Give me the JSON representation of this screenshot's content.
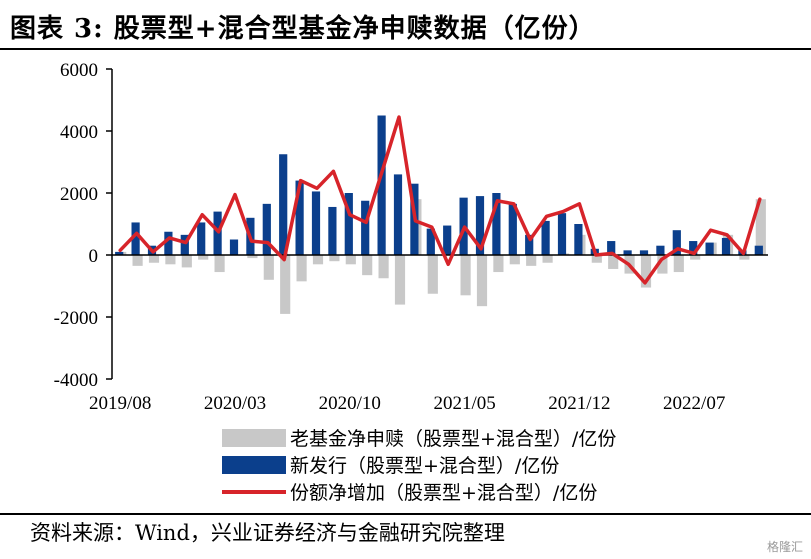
{
  "title": "图表 3:  股票型+混合型基金净申赎数据（亿份）",
  "source": "资料来源：Wind，兴业证券经济与金融研究院整理",
  "watermark": "格隆汇",
  "colors": {
    "old": "#c8c8c8",
    "new": "#0b3f8c",
    "net": "#d7242a"
  },
  "chart_data": {
    "type": "bar",
    "title": "",
    "xlabel": "",
    "ylabel": "",
    "ylim": [
      -4000,
      6000
    ],
    "yticks": [
      "6000",
      "4000",
      "2000",
      "0",
      "-2000",
      "-4000"
    ],
    "ytick_values": [
      6000,
      4000,
      2000,
      0,
      -2000,
      -4000
    ],
    "xtick_labels": [
      "2019/08",
      "2020/03",
      "2020/10",
      "2021/05",
      "2021/12",
      "2022/07"
    ],
    "xtick_index": [
      0,
      7,
      14,
      21,
      28,
      35
    ],
    "categories": [
      "2019/08",
      "2019/09",
      "2019/10",
      "2019/11",
      "2019/12",
      "2020/01",
      "2020/02",
      "2020/03",
      "2020/04",
      "2020/05",
      "2020/06",
      "2020/07",
      "2020/08",
      "2020/09",
      "2020/10",
      "2020/11",
      "2020/12",
      "2021/01",
      "2021/02",
      "2021/03",
      "2021/04",
      "2021/05",
      "2021/06",
      "2021/07",
      "2021/08",
      "2021/09",
      "2021/10",
      "2021/11",
      "2021/12",
      "2022/01",
      "2022/02",
      "2022/03",
      "2022/04",
      "2022/05",
      "2022/06",
      "2022/07",
      "2022/08",
      "2022/09",
      "2022/10",
      "2022/11"
    ],
    "legend_position": "bottom",
    "series": [
      {
        "name": "老基金净申赎（股票型+混合型）/亿份",
        "kind": "bar",
        "values": [
          100,
          -350,
          -250,
          -300,
          -400,
          -150,
          -550,
          0,
          -100,
          -800,
          -1900,
          -850,
          -300,
          -200,
          -300,
          -650,
          -750,
          -1600,
          1800,
          -1250,
          0,
          -1300,
          -1650,
          -550,
          -300,
          -350,
          -250,
          50,
          650,
          -250,
          -450,
          -600,
          -1050,
          -600,
          -550,
          -150,
          400,
          650,
          -150,
          1800
        ]
      },
      {
        "name": "新发行（股票型+混合型）/亿份",
        "kind": "bar",
        "values": [
          100,
          1050,
          300,
          750,
          650,
          1050,
          1400,
          500,
          1200,
          1650,
          3250,
          2400,
          2050,
          1550,
          2000,
          1750,
          4500,
          2600,
          2300,
          850,
          950,
          1850,
          1900,
          2000,
          1650,
          650,
          1100,
          1350,
          1000,
          200,
          450,
          150,
          150,
          300,
          800,
          450,
          400,
          550,
          150,
          300
        ]
      },
      {
        "name": "份额净增加（股票型+混合型）/亿份",
        "kind": "line",
        "values": [
          150,
          700,
          100,
          550,
          400,
          1300,
          750,
          1950,
          450,
          400,
          -150,
          2400,
          2150,
          2700,
          1300,
          1050,
          2750,
          4450,
          1100,
          900,
          -300,
          900,
          200,
          1750,
          1650,
          500,
          1250,
          1400,
          1650,
          0,
          50,
          -300,
          -900,
          -150,
          200,
          50,
          800,
          650,
          50,
          1800
        ]
      }
    ]
  },
  "legend": [
    {
      "label": "老基金净申赎（股票型+混合型）/亿份",
      "swatch": "bar-old"
    },
    {
      "label": "新发行（股票型+混合型）/亿份",
      "swatch": "bar-new"
    },
    {
      "label": "份额净增加（股票型+混合型）/亿份",
      "swatch": "line"
    }
  ]
}
